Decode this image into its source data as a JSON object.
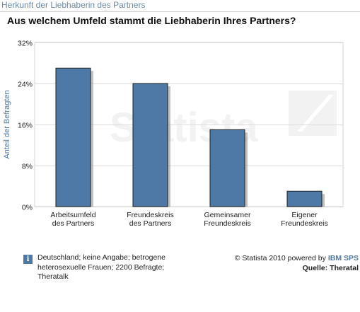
{
  "header": {
    "title": "Herkunft der Liebhaberin des Partners"
  },
  "chart_data": {
    "type": "bar",
    "title": "Aus welchem Umfeld stammt die Liebhaberin Ihres Partners?",
    "ylabel": "Anteil der Befragten",
    "ylim": [
      0,
      32
    ],
    "yticks": [
      "0%",
      "8%",
      "16%",
      "24%",
      "32%"
    ],
    "ytick_values": [
      0,
      8,
      16,
      24,
      32
    ],
    "categories": [
      [
        "Arbeitsumfeld",
        "des Partners"
      ],
      [
        "Freundeskreis",
        "des Partners"
      ],
      [
        "Gemeinsamer",
        "Freundeskreis"
      ],
      [
        "Eigener",
        "Freundeskreis"
      ]
    ],
    "values": [
      27,
      24,
      15,
      3
    ],
    "bar_color": "#4e79a6",
    "grid": true,
    "legend": "none",
    "watermark": "Statista"
  },
  "footer": {
    "note": "Deutschland; keine Angabe; betrogene heterosexuelle Frauen; 2200 Befragte; Theratalk",
    "info_icon": "info-icon",
    "copyright_prefix": "© Statista 2010 powered by",
    "brand": "IBM SPS",
    "source": "Quelle: Theratal"
  }
}
